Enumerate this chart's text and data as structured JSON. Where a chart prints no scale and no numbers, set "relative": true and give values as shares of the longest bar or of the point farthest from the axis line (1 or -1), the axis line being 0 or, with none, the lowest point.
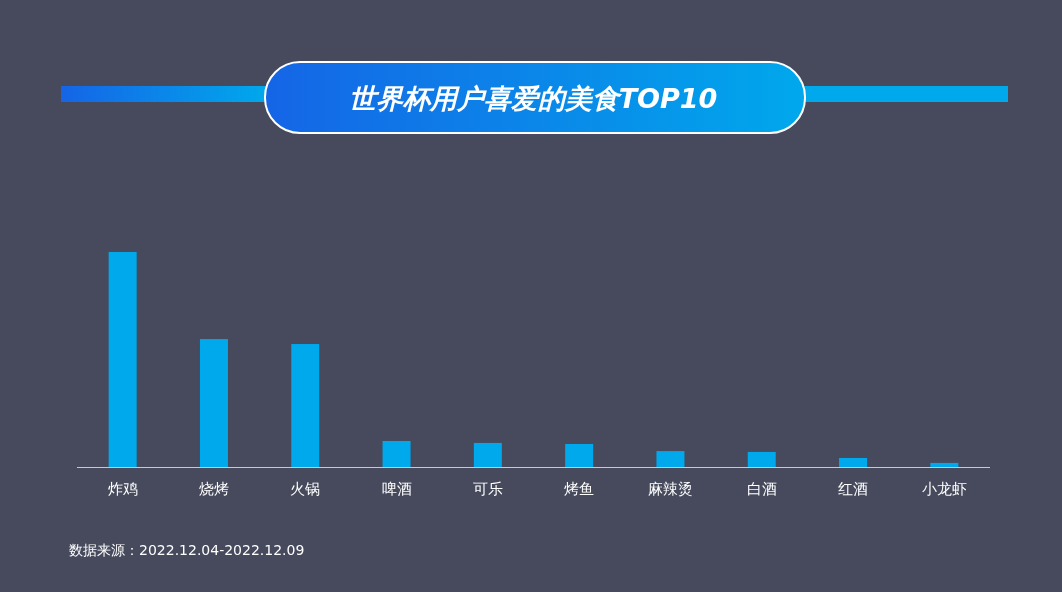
{
  "chart_data": {
    "type": "bar",
    "title": "世界杯用户喜爱的美食TOP10",
    "relative": true,
    "color": "#00a8ec",
    "categories": [
      "炸鸡",
      "烧烤",
      "火锅",
      "啤酒",
      "可乐",
      "烤鱼",
      "麻辣烫",
      "白酒",
      "红酒",
      "小龙虾"
    ],
    "values": [
      1,
      0.595,
      0.572,
      0.121,
      0.112,
      0.107,
      0.074,
      0.07,
      0.042,
      0.019
    ],
    "annotations": [
      "数据来源：2022.12.04-2022.12.09"
    ]
  }
}
